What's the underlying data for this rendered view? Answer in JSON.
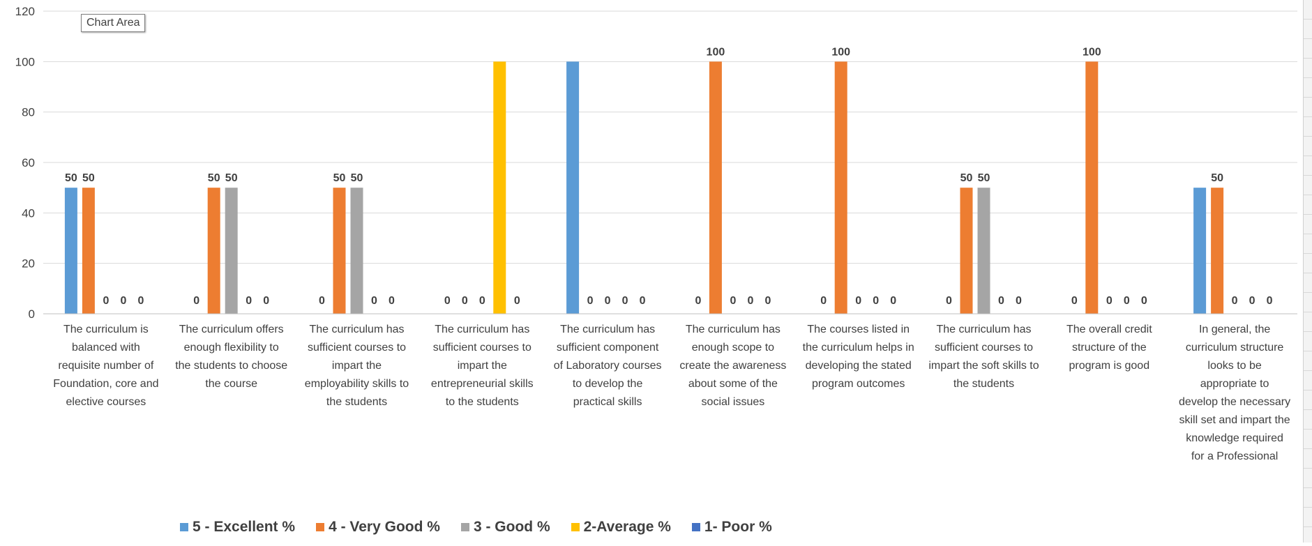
{
  "chart_data": {
    "type": "bar",
    "categories": [
      "The curriculum is balanced with requisite number of Foundation, core and elective courses",
      "The curriculum offers enough flexibility to the students to choose the course",
      "The curriculum has sufficient courses to impart the employability skills to the students",
      "The curriculum has sufficient courses to impart the entrepreneurial skills to the students",
      "The curriculum has sufficient component of Laboratory courses to develop the practical skills",
      "The curriculum has enough scope to create the awareness about some of the social issues",
      "The courses listed in the curriculum helps in developing the stated program outcomes",
      "The curriculum has sufficient courses to impart the soft skills to the students",
      "The overall credit structure of the program is good",
      "In general, the curriculum structure looks to be appropriate to develop the necessary skill set and impart the knowledge required for a Professional"
    ],
    "category_lines": [
      [
        "The curriculum is",
        "balanced with",
        "requisite number of",
        "Foundation, core and",
        "elective courses"
      ],
      [
        "The curriculum offers",
        "enough flexibility to",
        "the students to choose",
        "the course"
      ],
      [
        "The curriculum has",
        "sufficient courses to",
        "impart the",
        "employability skills to",
        "the students"
      ],
      [
        "The curriculum has",
        "sufficient courses to",
        "impart the",
        "entrepreneurial skills",
        "to the students"
      ],
      [
        "The curriculum has",
        "sufficient component",
        "of Laboratory courses",
        "to develop the",
        "practical skills"
      ],
      [
        "The curriculum has",
        "enough scope to",
        "create the awareness",
        "about some of the",
        "social issues"
      ],
      [
        "The courses listed in",
        "the curriculum helps in",
        "developing the stated",
        "program outcomes"
      ],
      [
        "The curriculum has",
        "sufficient courses to",
        "impart the soft skills to",
        "the students"
      ],
      [
        "The overall credit",
        "structure of the",
        "program is good"
      ],
      [
        "In general, the",
        "curriculum structure",
        "looks to be",
        "appropriate to",
        "develop the necessary",
        "skill set and impart the",
        "knowledge required",
        "for a Professional"
      ]
    ],
    "series": [
      {
        "name": "5 - Excellent  %",
        "color": "#5B9BD5",
        "values": [
          50,
          0,
          0,
          0,
          100,
          0,
          0,
          0,
          0,
          50
        ],
        "labels": [
          true,
          true,
          true,
          true,
          false,
          true,
          true,
          true,
          true,
          false
        ]
      },
      {
        "name": "4 - Very Good %",
        "color": "#ED7D31",
        "values": [
          50,
          50,
          50,
          0,
          0,
          100,
          100,
          50,
          100,
          50
        ],
        "labels": [
          true,
          true,
          true,
          true,
          true,
          true,
          true,
          true,
          true,
          true
        ]
      },
      {
        "name": "3 - Good %",
        "color": "#A5A5A5",
        "values": [
          0,
          50,
          50,
          0,
          0,
          0,
          0,
          50,
          0,
          0
        ],
        "labels": [
          true,
          true,
          true,
          true,
          true,
          true,
          true,
          true,
          true,
          true
        ]
      },
      {
        "name": "2-Average %",
        "color": "#FFC000",
        "values": [
          0,
          0,
          0,
          100,
          0,
          0,
          0,
          0,
          0,
          0
        ],
        "labels": [
          true,
          true,
          true,
          false,
          true,
          true,
          true,
          true,
          true,
          true
        ]
      },
      {
        "name": "1- Poor %",
        "color": "#4472C4",
        "values": [
          0,
          0,
          0,
          0,
          0,
          0,
          0,
          0,
          0,
          0
        ],
        "labels": [
          true,
          true,
          true,
          true,
          true,
          true,
          true,
          true,
          true,
          true
        ]
      }
    ],
    "ylim": [
      0,
      120
    ],
    "yticks": [
      0,
      20,
      40,
      60,
      80,
      100,
      120
    ],
    "grid": true,
    "legend_position": "bottom",
    "title": "",
    "xlabel": "",
    "ylabel": ""
  },
  "tooltip": {
    "text": "Chart Area"
  }
}
